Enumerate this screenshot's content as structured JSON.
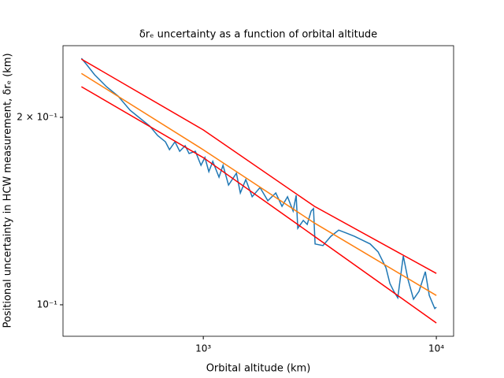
{
  "chart_data": {
    "type": "line",
    "title": "δrₑ uncertainty as a function of orbital altitude",
    "xlabel": "Orbital altitude (km)",
    "ylabel": "Positional uncertainty in HCW measurement, δrₑ (km)",
    "xscale": "log",
    "yscale": "log",
    "xlim": [
      250,
      11860
    ],
    "ylim": [
      0.089,
      0.2607
    ],
    "xticks": [
      {
        "value": 1000,
        "label": "10³"
      },
      {
        "value": 10000,
        "label": "10⁴"
      }
    ],
    "yticks": [
      {
        "value": 0.1,
        "label": "10⁻¹"
      },
      {
        "value": 0.2,
        "label": "2 × 10⁻¹"
      }
    ],
    "series": [
      {
        "color": "#1f77b4",
        "x": [
          300,
          316,
          342,
          384,
          431,
          485,
          524,
          589,
          637,
          688,
          716,
          756,
          792,
          836,
          869,
          925,
          977,
          1016,
          1056,
          1098,
          1168,
          1215,
          1283,
          1387,
          1442,
          1522,
          1620,
          1751,
          1892,
          2046,
          2177,
          2299,
          2428,
          2504,
          2543,
          2686,
          2792,
          2903,
          2972,
          3018,
          3262,
          3526,
          3812,
          4120,
          4453,
          4813,
          5203,
          5623,
          6078,
          6319,
          6570,
          6831,
          7212,
          7556,
          7981,
          8428,
          8970,
          9325,
          9845,
          10000
        ],
        "values": [
          0.2488,
          0.243,
          0.234,
          0.224,
          0.2163,
          0.2053,
          0.2006,
          0.1937,
          0.187,
          0.1827,
          0.1775,
          0.1827,
          0.1764,
          0.1801,
          0.1749,
          0.1764,
          0.1675,
          0.1724,
          0.1636,
          0.1699,
          0.1603,
          0.1675,
          0.1557,
          0.1627,
          0.1512,
          0.1589,
          0.1491,
          0.1543,
          0.1469,
          0.1512,
          0.1439,
          0.1491,
          0.1414,
          0.1499,
          0.1327,
          0.1366,
          0.1346,
          0.1414,
          0.1427,
          0.1252,
          0.1245,
          0.1288,
          0.1318,
          0.1303,
          0.1288,
          0.127,
          0.1252,
          0.1216,
          0.1147,
          0.1082,
          0.1051,
          0.1026,
          0.1198,
          0.1098,
          0.1021,
          0.1051,
          0.113,
          0.1035,
          0.0986,
          0.0991
        ]
      },
      {
        "color": "#ff7f0e",
        "x": [
          300,
          1000,
          3000,
          10000
        ],
        "values": [
          0.2353,
          0.1774,
          0.1353,
          0.1035
        ]
      },
      {
        "color": "#ff0000",
        "x": [
          300,
          1000,
          3000,
          10000
        ],
        "values": [
          0.248,
          0.1909,
          0.1439,
          0.1123
        ]
      },
      {
        "color": "#ff0000",
        "x": [
          300,
          1000,
          3000,
          10000
        ],
        "values": [
          0.224,
          0.1723,
          0.1288,
          0.0935
        ]
      }
    ]
  }
}
